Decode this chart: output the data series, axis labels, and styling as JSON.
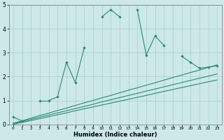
{
  "xlabel": "Humidex (Indice chaleur)",
  "x": [
    0,
    1,
    2,
    3,
    4,
    5,
    6,
    7,
    8,
    9,
    10,
    11,
    12,
    13,
    14,
    15,
    16,
    17,
    18,
    19,
    20,
    21,
    22,
    23
  ],
  "y_main": [
    0.3,
    0.15,
    null,
    1.0,
    1.0,
    1.15,
    2.6,
    1.75,
    3.2,
    null,
    4.5,
    4.8,
    4.5,
    null,
    4.8,
    2.9,
    3.7,
    3.3,
    null,
    2.85,
    2.6,
    2.35,
    2.4,
    2.45
  ],
  "y_line1": [
    0.05,
    0.15,
    0.26,
    0.37,
    0.47,
    0.58,
    0.68,
    0.79,
    0.9,
    1.0,
    1.11,
    1.21,
    1.32,
    1.43,
    1.53,
    1.64,
    1.74,
    1.85,
    1.96,
    2.06,
    2.17,
    2.27,
    2.38,
    2.49
  ],
  "y_line2": [
    0.03,
    0.12,
    0.21,
    0.3,
    0.39,
    0.48,
    0.57,
    0.66,
    0.75,
    0.84,
    0.94,
    1.03,
    1.12,
    1.21,
    1.3,
    1.39,
    1.48,
    1.57,
    1.66,
    1.75,
    1.84,
    1.93,
    2.02,
    2.11
  ],
  "y_line3": [
    0.0,
    0.08,
    0.16,
    0.24,
    0.32,
    0.4,
    0.48,
    0.57,
    0.65,
    0.73,
    0.81,
    0.89,
    0.97,
    1.05,
    1.13,
    1.21,
    1.3,
    1.38,
    1.46,
    1.54,
    1.62,
    1.7,
    1.78,
    1.86
  ],
  "line_color": "#2a8b74",
  "bg_color": "#cce8e8",
  "grid_color": "#aacece",
  "ylim": [
    0,
    5
  ],
  "xlim_min": -0.5,
  "xlim_max": 23.5,
  "yticks": [
    0,
    1,
    2,
    3,
    4,
    5
  ],
  "xticks": [
    0,
    1,
    2,
    3,
    4,
    5,
    6,
    7,
    8,
    9,
    10,
    11,
    12,
    13,
    14,
    15,
    16,
    17,
    18,
    19,
    20,
    21,
    22,
    23
  ]
}
